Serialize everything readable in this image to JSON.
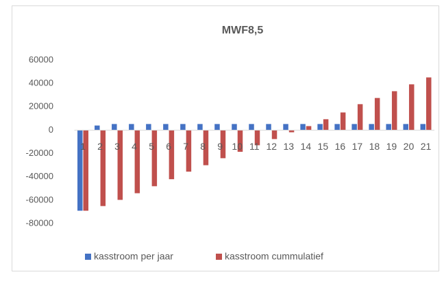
{
  "chart_data": {
    "type": "bar",
    "title": "MWF8,5",
    "categories": [
      "1",
      "2",
      "3",
      "4",
      "5",
      "6",
      "7",
      "8",
      "9",
      "10",
      "11",
      "12",
      "13",
      "14",
      "15",
      "16",
      "17",
      "18",
      "19",
      "20",
      "21"
    ],
    "series": [
      {
        "name": "kasstroom per jaar",
        "color": "#4472c4",
        "values": [
          -69000,
          4000,
          5300,
          5300,
          5300,
          5300,
          5300,
          5300,
          5300,
          5300,
          5300,
          5300,
          5300,
          5300,
          5300,
          5300,
          5300,
          5300,
          5300,
          5300,
          5300
        ]
      },
      {
        "name": "kasstroom cummulatief",
        "color": "#c0504d",
        "values": [
          -69000,
          -65000,
          -59700,
          -54000,
          -48000,
          -42000,
          -35500,
          -30000,
          -24000,
          -18500,
          -12900,
          -7600,
          -1800,
          3500,
          9400,
          15200,
          22300,
          27600,
          33400,
          39300,
          45200
        ]
      }
    ],
    "ylim": [
      -80000,
      60000
    ],
    "yticks": [
      -80000,
      -60000,
      -40000,
      -20000,
      0,
      20000,
      40000,
      60000
    ],
    "grid": false,
    "legend": "bottom"
  }
}
